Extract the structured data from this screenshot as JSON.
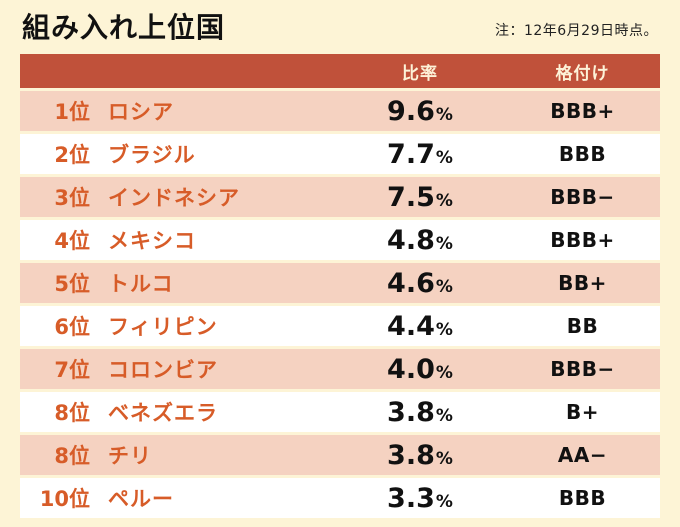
{
  "title": "組み入れ上位国",
  "note": "注：12年6月29日時点。",
  "table": {
    "headers": {
      "ratio": "比率",
      "rating": "格付け"
    },
    "percent_sign": "%",
    "rows": [
      {
        "rank": "1位",
        "country": "ロシア",
        "ratio": "9.6",
        "rating": "BBB+"
      },
      {
        "rank": "2位",
        "country": "ブラジル",
        "ratio": "7.7",
        "rating": "BBB"
      },
      {
        "rank": "3位",
        "country": "インドネシア",
        "ratio": "7.5",
        "rating": "BBB−"
      },
      {
        "rank": "4位",
        "country": "メキシコ",
        "ratio": "4.8",
        "rating": "BBB+"
      },
      {
        "rank": "5位",
        "country": "トルコ",
        "ratio": "4.6",
        "rating": "BB+"
      },
      {
        "rank": "6位",
        "country": "フィリピン",
        "ratio": "4.4",
        "rating": "BB"
      },
      {
        "rank": "7位",
        "country": "コロンビア",
        "ratio": "4.0",
        "rating": "BBB−"
      },
      {
        "rank": "8位",
        "country": "ベネズエラ",
        "ratio": "3.8",
        "rating": "B+"
      },
      {
        "rank": "8位",
        "country": "チリ",
        "ratio": "3.8",
        "rating": "AA−"
      },
      {
        "rank": "10位",
        "country": "ペルー",
        "ratio": "3.3",
        "rating": "BBB"
      }
    ]
  },
  "colors": {
    "background": "#fdf4d6",
    "header_bg": "#c0513a",
    "header_text": "#fdf2d8",
    "row_pink": "#f5d2c1",
    "row_white": "#ffffff",
    "accent_text": "#d75c28",
    "value_text": "#111111"
  },
  "chart_data": {
    "type": "table",
    "title": "組み入れ上位国",
    "note": "注：12年6月29日時点。",
    "columns": [
      "",
      "",
      "比率",
      "格付け"
    ],
    "rows": [
      [
        "1位",
        "ロシア",
        9.6,
        "BBB+"
      ],
      [
        "2位",
        "ブラジル",
        7.7,
        "BBB"
      ],
      [
        "3位",
        "インドネシア",
        7.5,
        "BBB−"
      ],
      [
        "4位",
        "メキシコ",
        4.8,
        "BBB+"
      ],
      [
        "5位",
        "トルコ",
        4.6,
        "BB+"
      ],
      [
        "6位",
        "フィリピン",
        4.4,
        "BB"
      ],
      [
        "7位",
        "コロンビア",
        4.0,
        "BBB−"
      ],
      [
        "8位",
        "ベネズエラ",
        3.8,
        "B+"
      ],
      [
        "8位",
        "チリ",
        3.8,
        "AA−"
      ],
      [
        "10位",
        "ペルー",
        3.3,
        "BBB"
      ]
    ],
    "layout": {
      "alternating_rows": true,
      "header_position": "top",
      "ratio_unit": "%"
    }
  }
}
